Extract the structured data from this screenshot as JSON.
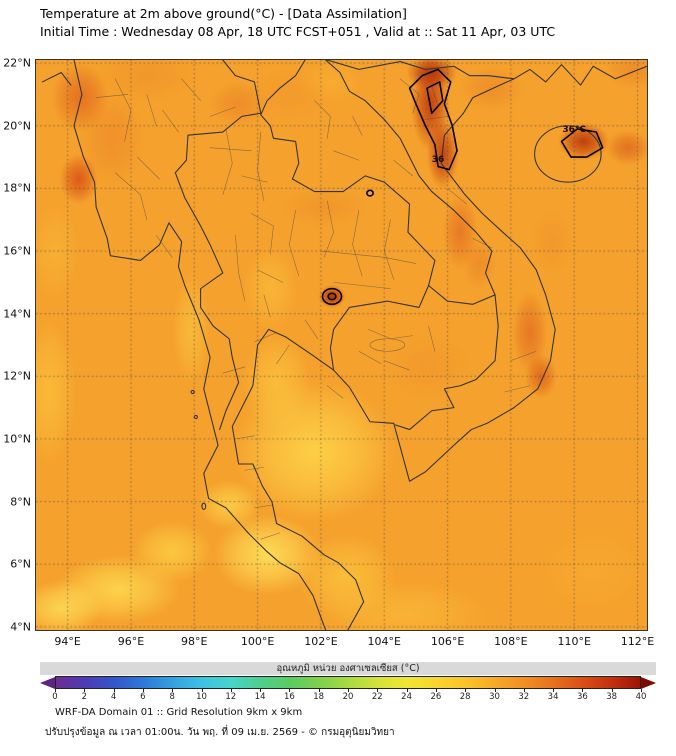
{
  "header": {
    "title": "Temperature at 2m above ground(°C) - [Data Assimilation]",
    "subtitle": "Initial Time : Wednesday 08 Apr, 18 UTC FCST+051 , Valid at :: Sat 11 Apr, 03 UTC"
  },
  "axes": {
    "lat_ticks": [
      {
        "v": 22,
        "label": "22°N"
      },
      {
        "v": 20,
        "label": "20°N"
      },
      {
        "v": 18,
        "label": "18°N"
      },
      {
        "v": 16,
        "label": "16°N"
      },
      {
        "v": 14,
        "label": "14°N"
      },
      {
        "v": 12,
        "label": "12°N"
      },
      {
        "v": 10,
        "label": "10°N"
      },
      {
        "v": 8,
        "label": "8°N"
      },
      {
        "v": 6,
        "label": "6°N"
      },
      {
        "v": 4,
        "label": "4°N"
      }
    ],
    "lon_ticks": [
      {
        "v": 94,
        "label": "94°E"
      },
      {
        "v": 96,
        "label": "96°E"
      },
      {
        "v": 98,
        "label": "98°E"
      },
      {
        "v": 100,
        "label": "100°E"
      },
      {
        "v": 102,
        "label": "102°E"
      },
      {
        "v": 104,
        "label": "104°E"
      },
      {
        "v": 106,
        "label": "106°E"
      },
      {
        "v": 108,
        "label": "108°E"
      },
      {
        "v": 110,
        "label": "110°E"
      },
      {
        "v": 112,
        "label": "112°E"
      }
    ]
  },
  "colorbar": {
    "label": "อุณหภูมิ หน่วย องศาเซลเซียส (°C)",
    "ticks": [
      0,
      2,
      4,
      6,
      8,
      10,
      12,
      14,
      16,
      18,
      20,
      22,
      24,
      26,
      28,
      30,
      32,
      34,
      36,
      38,
      40
    ],
    "left_arrow_color": "#5A2482",
    "right_arrow_color": "#7E0B02",
    "stops": [
      {
        "v": 0,
        "c": "#6B2E91"
      },
      {
        "v": 2,
        "c": "#4D3BB5"
      },
      {
        "v": 4,
        "c": "#3356CC"
      },
      {
        "v": 6,
        "c": "#2E79D8"
      },
      {
        "v": 8,
        "c": "#33A0E0"
      },
      {
        "v": 10,
        "c": "#3FC2E2"
      },
      {
        "v": 12,
        "c": "#45D6C8"
      },
      {
        "v": 14,
        "c": "#4CCF8E"
      },
      {
        "v": 16,
        "c": "#5ACC62"
      },
      {
        "v": 18,
        "c": "#7ED04C"
      },
      {
        "v": 20,
        "c": "#A8DA41"
      },
      {
        "v": 22,
        "c": "#D2E23A"
      },
      {
        "v": 24,
        "c": "#F0E534"
      },
      {
        "v": 26,
        "c": "#F7D52E"
      },
      {
        "v": 28,
        "c": "#FAC42A"
      },
      {
        "v": 30,
        "c": "#F8AA27"
      },
      {
        "v": 32,
        "c": "#F19023"
      },
      {
        "v": 34,
        "c": "#E8721E"
      },
      {
        "v": 36,
        "c": "#DB5016"
      },
      {
        "v": 38,
        "c": "#C5300D"
      },
      {
        "v": 40,
        "c": "#9E1405"
      }
    ]
  },
  "footer": {
    "line1": "WRF-DA Domain 01 :: Grid Resolution 9km x 9km",
    "line2": "ปรับปรุงข้อมูล ณ เวลา 01:00น. วัน พฤ. ที่ 09 เม.ย. 2569 - © กรมอุตุนิยมวิทยา"
  },
  "chart_data": {
    "type": "heatmap",
    "title": "Temperature at 2m above ground (°C)",
    "lon_range": [
      93.0,
      112.3
    ],
    "lat_range": [
      3.9,
      22.1
    ],
    "grid_step_deg": 2,
    "colorbar_range": [
      0,
      40
    ],
    "base_temp_c": 32,
    "base_color": "#F5A12D",
    "contour_labels": [
      {
        "text": "36",
        "lon": 105.7,
        "lat": 18.9
      },
      {
        "text": "36°C",
        "lon": 110.0,
        "lat": 19.85
      }
    ],
    "heat_blobs": [
      {
        "lon": 101.8,
        "lat": 9.6,
        "rx": 2.6,
        "ry": 2.3,
        "c": "#FFD84B",
        "a": 0.85,
        "t": 28
      },
      {
        "lon": 100.6,
        "lat": 11.8,
        "rx": 1.1,
        "ry": 1.6,
        "c": "#FFD044",
        "a": 0.6,
        "t": 29
      },
      {
        "lon": 100.3,
        "lat": 6.3,
        "rx": 1.7,
        "ry": 1.3,
        "c": "#FFE25C",
        "a": 0.9,
        "t": 27
      },
      {
        "lon": 102.8,
        "lat": 5.6,
        "rx": 1.6,
        "ry": 1.4,
        "c": "#FDCA3F",
        "a": 0.7,
        "t": 29
      },
      {
        "lon": 95.6,
        "lat": 5.2,
        "rx": 2.0,
        "ry": 1.1,
        "c": "#FFDC50",
        "a": 0.85,
        "t": 28
      },
      {
        "lon": 93.8,
        "lat": 4.6,
        "rx": 1.3,
        "ry": 0.9,
        "c": "#FFE25C",
        "a": 0.8,
        "t": 27
      },
      {
        "lon": 97.3,
        "lat": 6.4,
        "rx": 1.3,
        "ry": 1.0,
        "c": "#FFD847",
        "a": 0.7,
        "t": 28
      },
      {
        "lon": 93.4,
        "lat": 11.5,
        "rx": 0.9,
        "ry": 2.4,
        "c": "#FCC83E",
        "a": 0.65,
        "t": 29
      },
      {
        "lon": 93.6,
        "lat": 16.0,
        "rx": 0.8,
        "ry": 1.6,
        "c": "#FBBE38",
        "a": 0.5,
        "t": 30
      },
      {
        "lon": 97.9,
        "lat": 13.5,
        "rx": 0.6,
        "ry": 1.8,
        "c": "#FDCE43",
        "a": 0.55,
        "t": 29
      },
      {
        "lon": 100.4,
        "lat": 14.8,
        "rx": 0.9,
        "ry": 1.4,
        "c": "#FCC93F",
        "a": 0.5,
        "t": 30
      },
      {
        "lon": 104.6,
        "lat": 4.4,
        "rx": 2.8,
        "ry": 1.1,
        "c": "#FBC03A",
        "a": 0.6,
        "t": 29
      },
      {
        "lon": 99.1,
        "lat": 7.9,
        "rx": 1.0,
        "ry": 0.8,
        "c": "#FFDC50",
        "a": 0.7,
        "t": 28
      },
      {
        "lon": 110.6,
        "lat": 5.8,
        "rx": 1.8,
        "ry": 1.4,
        "c": "#F8B031",
        "a": 0.5,
        "t": 31
      },
      {
        "lon": 102.3,
        "lat": 21.4,
        "rx": 1.1,
        "ry": 0.7,
        "c": "#FAB434",
        "a": 0.5,
        "t": 31
      },
      {
        "lon": 94.35,
        "lat": 18.3,
        "rx": 0.6,
        "ry": 0.8,
        "c": "#D84E15",
        "a": 0.85,
        "t": 35
      },
      {
        "lon": 94.4,
        "lat": 20.9,
        "rx": 0.9,
        "ry": 1.1,
        "c": "#DE5F1D",
        "a": 0.7,
        "t": 34
      },
      {
        "lon": 95.4,
        "lat": 19.6,
        "rx": 1.0,
        "ry": 1.5,
        "c": "#ED8428",
        "a": 0.55,
        "t": 33
      },
      {
        "lon": 105.45,
        "lat": 20.7,
        "rx": 0.6,
        "ry": 1.5,
        "c": "#C03A0D",
        "a": 0.92,
        "t": 36
      },
      {
        "lon": 105.85,
        "lat": 19.1,
        "rx": 0.5,
        "ry": 1.1,
        "c": "#C03A0D",
        "a": 0.9,
        "t": 36
      },
      {
        "lon": 105.5,
        "lat": 21.7,
        "rx": 0.8,
        "ry": 0.55,
        "c": "#B02F08",
        "a": 0.88,
        "t": 37
      },
      {
        "lon": 110.3,
        "lat": 19.5,
        "rx": 0.8,
        "ry": 0.6,
        "c": "#BB3409",
        "a": 0.9,
        "t": 36
      },
      {
        "lon": 111.7,
        "lat": 19.3,
        "rx": 0.7,
        "ry": 0.55,
        "c": "#D85A1A",
        "a": 0.65,
        "t": 35
      },
      {
        "lon": 106.4,
        "lat": 16.6,
        "rx": 0.55,
        "ry": 1.2,
        "c": "#E16620",
        "a": 0.65,
        "t": 34
      },
      {
        "lon": 107.0,
        "lat": 15.6,
        "rx": 0.5,
        "ry": 0.8,
        "c": "#E87A24",
        "a": 0.5,
        "t": 33
      },
      {
        "lon": 108.6,
        "lat": 13.4,
        "rx": 0.55,
        "ry": 1.3,
        "c": "#E16620",
        "a": 0.7,
        "t": 34
      },
      {
        "lon": 108.95,
        "lat": 12.0,
        "rx": 0.5,
        "ry": 0.7,
        "c": "#D85415",
        "a": 0.7,
        "t": 35
      },
      {
        "lon": 102.35,
        "lat": 14.55,
        "rx": 0.42,
        "ry": 0.36,
        "c": "#AE2D06",
        "a": 0.95,
        "t": 36
      },
      {
        "lon": 102.1,
        "lat": 17.4,
        "rx": 1.3,
        "ry": 0.6,
        "c": "#EE8C2A",
        "a": 0.5,
        "t": 33
      },
      {
        "lon": 99.4,
        "lat": 20.7,
        "rx": 0.9,
        "ry": 0.7,
        "c": "#E87E26",
        "a": 0.55,
        "t": 33
      },
      {
        "lon": 107.4,
        "lat": 21.2,
        "rx": 1.0,
        "ry": 0.7,
        "c": "#E87E26",
        "a": 0.5,
        "t": 33
      },
      {
        "lon": 111.9,
        "lat": 21.8,
        "rx": 0.9,
        "ry": 0.6,
        "c": "#E87E26",
        "a": 0.55,
        "t": 33
      },
      {
        "lon": 105.4,
        "lat": 12.3,
        "rx": 1.3,
        "ry": 1.0,
        "c": "#F0912B",
        "a": 0.45,
        "t": 33
      },
      {
        "lon": 109.3,
        "lat": 16.3,
        "rx": 0.6,
        "ry": 1.0,
        "c": "#EE8C2A",
        "a": 0.4,
        "t": 33
      },
      {
        "lon": 96.5,
        "lat": 21.6,
        "rx": 1.5,
        "ry": 0.8,
        "c": "#EE8C2A",
        "a": 0.45,
        "t": 33
      },
      {
        "lon": 101.0,
        "lat": 21.0,
        "rx": 1.2,
        "ry": 0.8,
        "c": "#F0912B",
        "a": 0.4,
        "t": 33
      }
    ]
  }
}
